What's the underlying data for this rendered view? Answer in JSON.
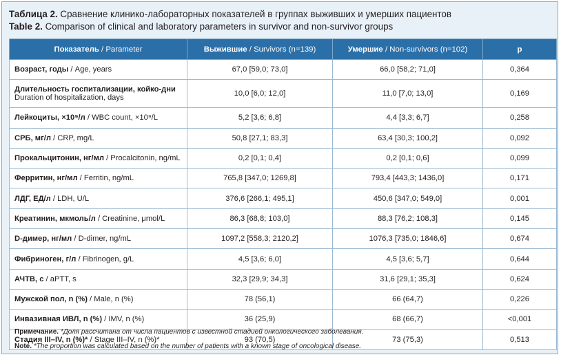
{
  "caption": {
    "ru_prefix": "Таблица 2.",
    "ru_text": " Сравнение клинико-лабораторных показателей в группах выживших и умерших пациентов",
    "en_prefix": "Table 2.",
    "en_text": " Comparison of clinical and laboratory parameters in survivor and non-survivor groups"
  },
  "table": {
    "headers": [
      {
        "bold": "Показатель",
        "rest": " / Parameter"
      },
      {
        "bold": "Выжившие",
        "rest": " / Survivors (n=139)"
      },
      {
        "bold": "Умершие",
        "rest": " / Non-survivors (n=102)"
      },
      {
        "bold": "p",
        "rest": ""
      }
    ],
    "rows": [
      {
        "bold": "Возраст, годы",
        "rest": " / Age, years",
        "line2": "",
        "survivors": "67,0 [59,0; 73,0]",
        "nonsurvivors": "66,0 [58,2; 71,0]",
        "p": "0,364"
      },
      {
        "bold": "Длительность госпитализации, койко-дни",
        "rest": "",
        "line2": "Duration of hospitalization, days",
        "survivors": "10,0 [6,0; 12,0]",
        "nonsurvivors": "11,0 [7,0; 13,0]",
        "p": "0,169"
      },
      {
        "bold": "Лейкоциты, ×10⁹/л",
        "rest": " / WBC count, ×10⁹/L",
        "line2": "",
        "survivors": "5,2 [3,6; 6,8]",
        "nonsurvivors": "4,4 [3,3; 6,7]",
        "p": "0,258"
      },
      {
        "bold": "СРБ, мг/л",
        "rest": " / CRP, mg/L",
        "line2": "",
        "survivors": "50,8 [27,1; 83,3]",
        "nonsurvivors": "63,4 [30,3; 100,2]",
        "p": "0,092"
      },
      {
        "bold": "Прокальцитонин, нг/мл",
        "rest": " / Procalcitonin, ng/mL",
        "line2": "",
        "survivors": "0,2 [0,1; 0,4]",
        "nonsurvivors": "0,2 [0,1; 0,6]",
        "p": "0,099"
      },
      {
        "bold": "Ферритин, нг/мл",
        "rest": " / Ferritin, ng/mL",
        "line2": "",
        "survivors": "765,8 [347,0; 1269,8]",
        "nonsurvivors": "793,4 [443,3; 1436,0]",
        "p": "0,171"
      },
      {
        "bold": "ЛДГ, ЕД/л",
        "rest": " / LDH, U/L",
        "line2": "",
        "survivors": "376,6 [266,1; 495,1]",
        "nonsurvivors": "450,6 [347,0; 549,0]",
        "p": "0,001"
      },
      {
        "bold": "Креатинин, мкмоль/л",
        "rest": " / Creatinine, μmol/L",
        "line2": "",
        "survivors": "86,3 [68,8; 103,0]",
        "nonsurvivors": "88,3 [76,2; 108,3]",
        "p": "0,145"
      },
      {
        "bold": "D-димер, нг/мл",
        "rest": " / D-dimer, ng/mL",
        "line2": "",
        "survivors": "1097,2 [558,3; 2120,2]",
        "nonsurvivors": "1076,3 [735,0; 1846,6]",
        "p": "0,674"
      },
      {
        "bold": "Фибриноген, г/л",
        "rest": " / Fibrinogen, g/L",
        "line2": "",
        "survivors": "4,5 [3,6; 6,0]",
        "nonsurvivors": "4,5 [3,6; 5,7]",
        "p": "0,644"
      },
      {
        "bold": "АЧТВ, с",
        "rest": " / aPTT, s",
        "line2": "",
        "survivors": "32,3 [29,9; 34,3]",
        "nonsurvivors": "31,6 [29,1; 35,3]",
        "p": "0,624"
      },
      {
        "bold": "Мужской пол, n (%)",
        "rest": " / Male, n (%)",
        "line2": "",
        "survivors": "78 (56,1)",
        "nonsurvivors": "66 (64,7)",
        "p": "0,226"
      },
      {
        "bold": "Инвазивная ИВЛ, n (%)",
        "rest": " / IMV, n (%)",
        "line2": "",
        "survivors": "36 (25,9)",
        "nonsurvivors": "68 (66,7)",
        "p": "<0,001"
      },
      {
        "bold": "Стадия III–IV, n (%)*",
        "rest": " / Stage III–IV, n (%)*",
        "line2": "",
        "survivors": "93 (70,5)",
        "nonsurvivors": "73 (75,3)",
        "p": "0,513"
      }
    ]
  },
  "notes": {
    "ru_label": "Примечание.",
    "ru_text": " *Доля рассчитана от числа пациентов с известной стадией онкологического заболевания.",
    "en_label": "Note.",
    "en_text": " *The proportion was calculated based on the number of patients with a known stage of oncological disease."
  }
}
